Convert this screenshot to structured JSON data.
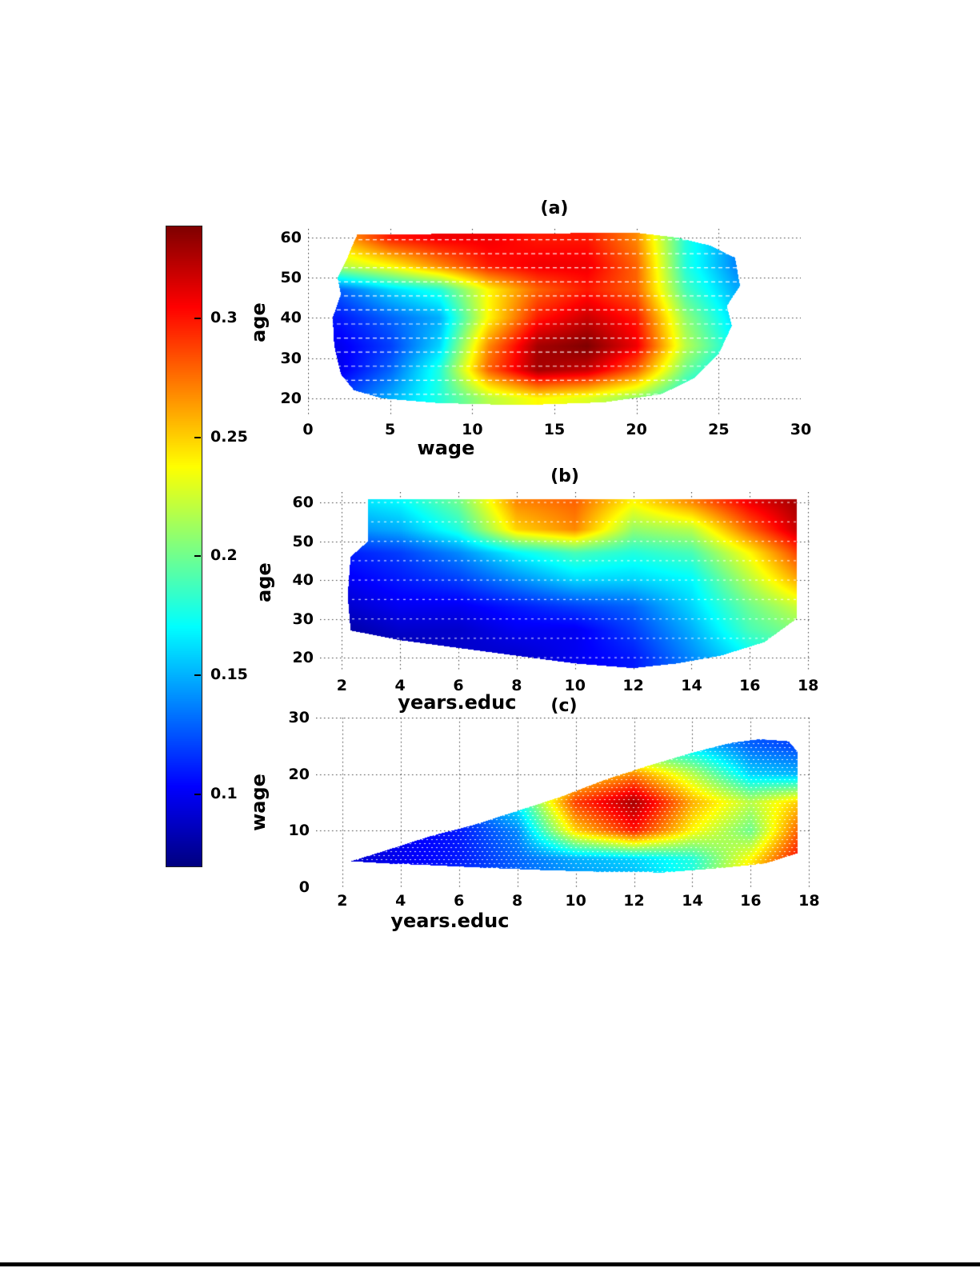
{
  "figure": {
    "description": "Three jet-colormap density heatmaps sharing one colorbar"
  },
  "colorbar": {
    "vmin": 0.07,
    "vmax": 0.339,
    "ticks": [
      0.3,
      0.25,
      0.2,
      0.15,
      0.1
    ],
    "tick_labels": [
      "0.3",
      "0.25",
      "0.2",
      "0.15",
      "0.1"
    ]
  },
  "chart_data": [
    {
      "id": "a",
      "type": "heatmap",
      "title": "(a)",
      "xlabel": "wage",
      "ylabel": "age",
      "xlim": [
        0,
        30
      ],
      "ylim": [
        15.6,
        62.2
      ],
      "xticks": [
        0,
        5,
        10,
        15,
        20,
        25,
        30
      ],
      "yticks": [
        20,
        30,
        40,
        50,
        60
      ],
      "colormap": "jet",
      "vmin": 0.07,
      "vmax": 0.34,
      "grid_x": [
        2,
        5,
        8,
        11,
        14,
        17,
        20,
        23,
        26
      ],
      "grid_y": [
        20,
        27,
        33,
        40,
        47,
        53,
        60
      ],
      "values": [
        [
          0.12,
          0.15,
          0.18,
          0.22,
          0.24,
          0.23,
          0.21,
          0.17,
          0.14
        ],
        [
          0.1,
          0.13,
          0.18,
          0.28,
          0.33,
          0.32,
          0.28,
          0.2,
          0.16
        ],
        [
          0.1,
          0.12,
          0.16,
          0.27,
          0.33,
          0.34,
          0.31,
          0.22,
          0.17
        ],
        [
          0.11,
          0.13,
          0.15,
          0.24,
          0.3,
          0.32,
          0.3,
          0.21,
          0.16
        ],
        [
          0.13,
          0.16,
          0.18,
          0.24,
          0.28,
          0.3,
          0.28,
          0.19,
          0.15
        ],
        [
          0.22,
          0.24,
          0.27,
          0.3,
          0.31,
          0.31,
          0.28,
          0.18,
          0.14
        ],
        [
          0.26,
          0.3,
          0.31,
          0.31,
          0.3,
          0.3,
          0.27,
          0.18,
          0.14
        ]
      ],
      "mask_polygon": [
        [
          3,
          60.8
        ],
        [
          20,
          61.2
        ],
        [
          22.5,
          60
        ],
        [
          24.5,
          58
        ],
        [
          26,
          55
        ],
        [
          26.3,
          48
        ],
        [
          25.5,
          43
        ],
        [
          25.8,
          38
        ],
        [
          25,
          31
        ],
        [
          23.5,
          25
        ],
        [
          21.5,
          21
        ],
        [
          18,
          19
        ],
        [
          13,
          18.3
        ],
        [
          8,
          18.8
        ],
        [
          4.5,
          20
        ],
        [
          2.8,
          22
        ],
        [
          2,
          26
        ],
        [
          1.6,
          33
        ],
        [
          1.5,
          40
        ],
        [
          2,
          46
        ],
        [
          1.8,
          50
        ],
        [
          2.4,
          55
        ],
        [
          2.7,
          58
        ]
      ]
    },
    {
      "id": "b",
      "type": "heatmap",
      "title": "(b)",
      "xlabel": "years.educ",
      "ylabel": "age",
      "xlim": [
        1.25,
        18.05
      ],
      "ylim": [
        16.3,
        62.7
      ],
      "xticks": [
        2,
        4,
        6,
        8,
        10,
        12,
        14,
        16,
        18
      ],
      "yticks": [
        20,
        30,
        40,
        50,
        60
      ],
      "colormap": "jet",
      "vmin": 0.07,
      "vmax": 0.34,
      "grid_x": [
        2,
        4,
        6,
        8,
        10,
        12,
        14,
        16,
        18
      ],
      "grid_y": [
        20,
        27,
        33,
        40,
        47,
        53,
        60
      ],
      "values": [
        [
          0.08,
          0.08,
          0.09,
          0.09,
          0.1,
          0.11,
          0.14,
          0.17,
          0.19
        ],
        [
          0.08,
          0.09,
          0.09,
          0.1,
          0.1,
          0.12,
          0.15,
          0.19,
          0.21
        ],
        [
          0.09,
          0.1,
          0.1,
          0.11,
          0.12,
          0.13,
          0.16,
          0.2,
          0.23
        ],
        [
          0.1,
          0.11,
          0.12,
          0.14,
          0.16,
          0.16,
          0.17,
          0.22,
          0.27
        ],
        [
          0.11,
          0.12,
          0.14,
          0.17,
          0.19,
          0.18,
          0.19,
          0.24,
          0.3
        ],
        [
          0.14,
          0.15,
          0.18,
          0.25,
          0.27,
          0.21,
          0.22,
          0.28,
          0.33
        ],
        [
          0.16,
          0.17,
          0.2,
          0.27,
          0.28,
          0.24,
          0.27,
          0.31,
          0.335
        ]
      ],
      "mask_polygon": [
        [
          2.9,
          60.8
        ],
        [
          17.6,
          60.8
        ],
        [
          17.6,
          30
        ],
        [
          16.5,
          24
        ],
        [
          15,
          20.5
        ],
        [
          13.5,
          18.5
        ],
        [
          12,
          17.3
        ],
        [
          10,
          18.5
        ],
        [
          7,
          21.5
        ],
        [
          4,
          24.5
        ],
        [
          2.3,
          27
        ],
        [
          2.2,
          36
        ],
        [
          2.3,
          46
        ],
        [
          2.9,
          50
        ]
      ]
    },
    {
      "id": "c",
      "type": "heatmap",
      "title": "(c)",
      "xlabel": "years.educ",
      "ylabel": "wage",
      "xlim": [
        1.1,
        18.1
      ],
      "ylim": [
        0,
        30
      ],
      "xticks": [
        2,
        4,
        6,
        8,
        10,
        12,
        14,
        16,
        18
      ],
      "yticks": [
        0,
        10,
        20,
        30
      ],
      "colormap": "jet",
      "vmin": 0.07,
      "vmax": 0.34,
      "grid_x": [
        2,
        4,
        6,
        8,
        10,
        12,
        14,
        16,
        18
      ],
      "grid_y": [
        0,
        5,
        10,
        15,
        20,
        25,
        30
      ],
      "values": [
        [
          0.1,
          0.11,
          0.12,
          0.13,
          0.14,
          0.15,
          0.18,
          0.26,
          0.33
        ],
        [
          0.09,
          0.1,
          0.11,
          0.13,
          0.15,
          0.16,
          0.18,
          0.24,
          0.32
        ],
        [
          0.1,
          0.1,
          0.11,
          0.14,
          0.25,
          0.3,
          0.24,
          0.2,
          0.3
        ],
        [
          0.11,
          0.11,
          0.12,
          0.17,
          0.29,
          0.33,
          0.26,
          0.22,
          0.26
        ],
        [
          0.12,
          0.12,
          0.13,
          0.18,
          0.24,
          0.27,
          0.22,
          0.16,
          0.15
        ],
        [
          0.13,
          0.13,
          0.14,
          0.17,
          0.2,
          0.18,
          0.16,
          0.13,
          0.12
        ],
        [
          0.13,
          0.13,
          0.14,
          0.16,
          0.18,
          0.16,
          0.14,
          0.12,
          0.11
        ]
      ],
      "mask_polygon": [
        [
          2.3,
          4.6
        ],
        [
          3.5,
          6.5
        ],
        [
          5,
          9
        ],
        [
          6.5,
          11
        ],
        [
          8,
          13.5
        ],
        [
          9.5,
          16
        ],
        [
          11,
          19
        ],
        [
          12.5,
          21.5
        ],
        [
          14,
          23.8
        ],
        [
          15.3,
          25.5
        ],
        [
          16.3,
          26.2
        ],
        [
          17.3,
          25.8
        ],
        [
          17.6,
          24
        ],
        [
          17.6,
          6
        ],
        [
          16.5,
          4.2
        ],
        [
          15,
          3.4
        ],
        [
          13,
          2.6
        ],
        [
          11,
          2.7
        ],
        [
          9,
          3.0
        ],
        [
          7,
          3.4
        ],
        [
          5,
          3.9
        ],
        [
          3.5,
          4.2
        ]
      ]
    }
  ]
}
